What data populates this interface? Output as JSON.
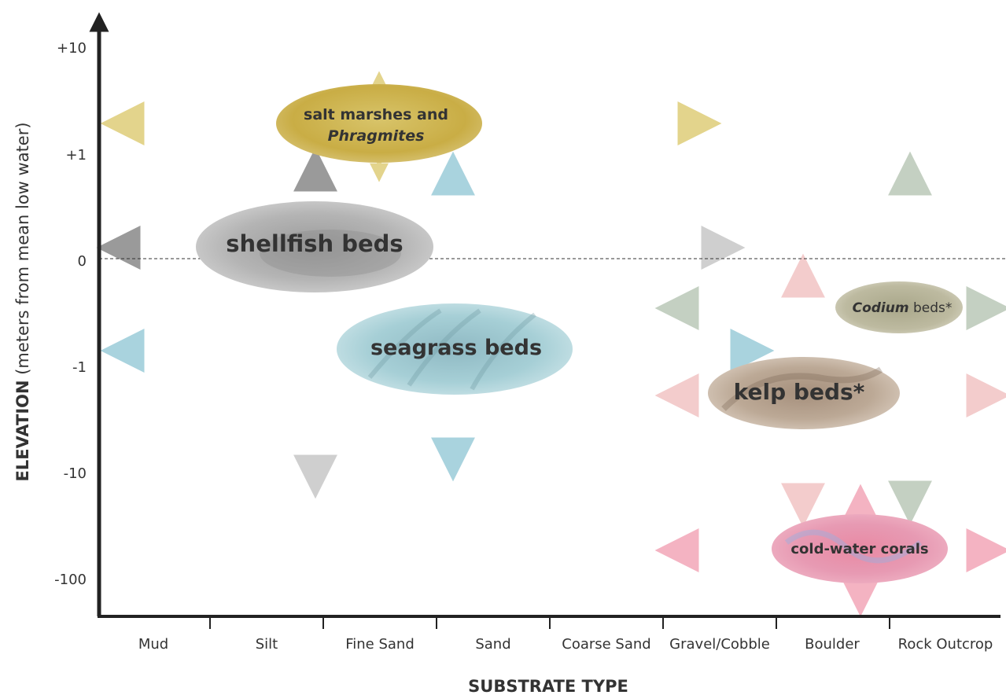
{
  "y_axis": {
    "title_bold": "ELEVATION",
    "title_rest": " (meters from mean low water)",
    "ticks": [
      "+10",
      "+1",
      "0",
      "-1",
      "-10",
      "-100"
    ]
  },
  "x_axis": {
    "title": "SUBSTRATE TYPE",
    "categories": [
      "Mud",
      "Silt",
      "Fine Sand",
      "Sand",
      "Coarse Sand",
      "Gravel/Cobble",
      "Boulder",
      "Rock Outcrop"
    ]
  },
  "habitats": {
    "salt_marsh": {
      "line1": "salt marshes and",
      "line2": "Phragmites",
      "color": "#d2b84a",
      "arrow_color": "#e0d080"
    },
    "shellfish": {
      "label": "shellfish beds",
      "color": "#a8a8a8",
      "arrow_color": "#8c8c8c"
    },
    "seagrass": {
      "label": "seagrass beds",
      "color": "#9fc7cf",
      "arrow_color": "#8ec6d6"
    },
    "codium": {
      "italic": "Codium",
      "rest": " beds*",
      "color": "#b7b59a",
      "arrow_color": "#b4c2b2"
    },
    "kelp": {
      "label": "kelp beds*",
      "color": "#b9a592",
      "arrow_color": "#f0c2c2"
    },
    "coral": {
      "label": "cold-water corals",
      "color": "#e68aa0",
      "arrow_color": "#f2a8b8"
    }
  },
  "colors": {
    "axis": "#222222",
    "text": "#333333"
  }
}
